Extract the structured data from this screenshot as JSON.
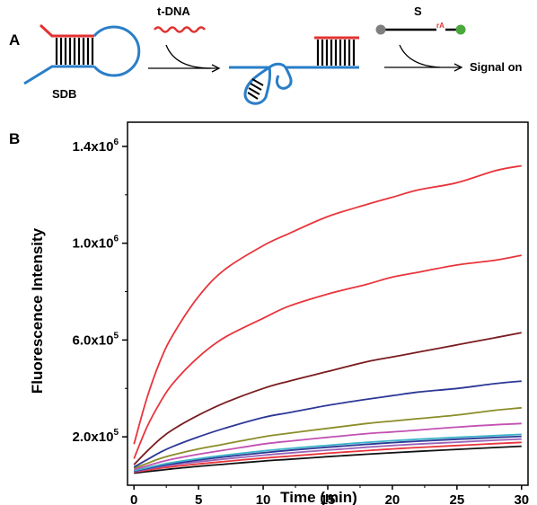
{
  "scheme": {
    "panel_label": "A",
    "sdb_label": "SDB",
    "tdna_label": "t-DNA",
    "s_label": "S",
    "ra_label": "rA",
    "signal_label": "Signal on",
    "colors": {
      "dna_blue": "#2a7ec8",
      "dna_red": "#e23232",
      "gray_bead": "#7f7f7f",
      "green_bead": "#4aa83c"
    }
  },
  "chart_data": {
    "panel_label": "B",
    "type": "line",
    "title": "",
    "xlabel": "Time (min)",
    "ylabel": "Fluorescence Intensity",
    "xlim": [
      -0.5,
      30.5
    ],
    "ylim": [
      0,
      1500000
    ],
    "xticks": [
      0,
      5,
      10,
      15,
      20,
      25,
      30
    ],
    "xtick_labels": [
      "0",
      "5",
      "10",
      "15",
      "20",
      "25",
      "30"
    ],
    "yticks": [
      200000,
      600000,
      1000000,
      1400000
    ],
    "ytick_labels": [
      {
        "base": "2.0x10",
        "exp": "5"
      },
      {
        "base": "6.0x10",
        "exp": "5"
      },
      {
        "base": "1.0x10",
        "exp": "6"
      },
      {
        "base": "1.4x10",
        "exp": "6"
      }
    ],
    "legend": "none",
    "grid": false,
    "series": [
      {
        "color": "#e8353c",
        "x": [
          0,
          1,
          2,
          3,
          5,
          7,
          10,
          12,
          15,
          18,
          20,
          22,
          25,
          28,
          30
        ],
        "values": [
          170000,
          360000,
          510000,
          620000,
          780000,
          890000,
          990000,
          1040000,
          1110000,
          1160000,
          1190000,
          1220000,
          1250000,
          1300000,
          1320000
        ]
      },
      {
        "color": "#e8353c",
        "x": [
          0,
          1,
          2,
          3,
          5,
          7,
          10,
          12,
          15,
          18,
          20,
          22,
          25,
          28,
          30
        ],
        "values": [
          110000,
          240000,
          340000,
          420000,
          530000,
          610000,
          690000,
          740000,
          790000,
          830000,
          860000,
          880000,
          910000,
          930000,
          950000
        ]
      },
      {
        "color": "#7a1c1f",
        "x": [
          0,
          1,
          2,
          3,
          5,
          7,
          10,
          12,
          15,
          18,
          20,
          22,
          25,
          28,
          30
        ],
        "values": [
          85000,
          140000,
          190000,
          230000,
          290000,
          340000,
          400000,
          430000,
          470000,
          510000,
          530000,
          550000,
          580000,
          610000,
          630000
        ]
      },
      {
        "color": "#2c3896",
        "x": [
          0,
          1,
          2,
          3,
          5,
          7,
          10,
          12,
          15,
          18,
          20,
          22,
          25,
          28,
          30
        ],
        "values": [
          75000,
          105000,
          135000,
          160000,
          200000,
          235000,
          280000,
          300000,
          330000,
          355000,
          370000,
          385000,
          400000,
          420000,
          430000
        ]
      },
      {
        "color": "#8a8d28",
        "x": [
          0,
          1,
          2,
          3,
          5,
          7,
          10,
          12,
          15,
          18,
          20,
          22,
          25,
          28,
          30
        ],
        "values": [
          70000,
          90000,
          110000,
          125000,
          150000,
          170000,
          200000,
          215000,
          235000,
          255000,
          265000,
          275000,
          290000,
          310000,
          320000
        ]
      },
      {
        "color": "#c251b4",
        "x": [
          0,
          1,
          2,
          3,
          5,
          7,
          10,
          12,
          15,
          18,
          20,
          22,
          25,
          28,
          30
        ],
        "values": [
          65000,
          80000,
          95000,
          108000,
          128000,
          145000,
          170000,
          182000,
          198000,
          213000,
          220000,
          228000,
          240000,
          250000,
          255000
        ]
      },
      {
        "color": "#3db3c9",
        "x": [
          0,
          1,
          2,
          3,
          5,
          7,
          10,
          12,
          15,
          18,
          20,
          22,
          25,
          28,
          30
        ],
        "values": [
          60000,
          72000,
          84000,
          94000,
          110000,
          124000,
          142000,
          152000,
          165000,
          177000,
          184000,
          190000,
          198000,
          205000,
          210000
        ]
      },
      {
        "color": "#2c3896",
        "x": [
          0,
          1,
          2,
          3,
          5,
          7,
          10,
          12,
          15,
          18,
          20,
          22,
          25,
          28,
          30
        ],
        "values": [
          58000,
          69000,
          80000,
          89000,
          104000,
          117000,
          134000,
          144000,
          157000,
          169000,
          176000,
          182000,
          190000,
          197000,
          202000
        ]
      },
      {
        "color": "#9a63b8",
        "x": [
          0,
          1,
          2,
          3,
          5,
          7,
          10,
          12,
          15,
          18,
          20,
          22,
          25,
          28,
          30
        ],
        "values": [
          56000,
          66000,
          76000,
          84000,
          97000,
          108000,
          124000,
          133000,
          145000,
          157000,
          164000,
          170000,
          178000,
          186000,
          191000
        ]
      },
      {
        "color": "#e8353c",
        "x": [
          0,
          1,
          2,
          3,
          5,
          7,
          10,
          12,
          15,
          18,
          20,
          22,
          25,
          28,
          30
        ],
        "values": [
          54000,
          62000,
          70000,
          77000,
          88000,
          98000,
          112000,
          120000,
          132000,
          143000,
          150000,
          156000,
          164000,
          172000,
          177000
        ]
      },
      {
        "color": "#111111",
        "x": [
          0,
          1,
          2,
          3,
          5,
          7,
          10,
          12,
          15,
          18,
          20,
          22,
          25,
          28,
          30
        ],
        "values": [
          50000,
          56000,
          62000,
          68000,
          78000,
          87000,
          100000,
          107000,
          118000,
          128000,
          134000,
          140000,
          148000,
          156000,
          161000
        ]
      }
    ]
  }
}
